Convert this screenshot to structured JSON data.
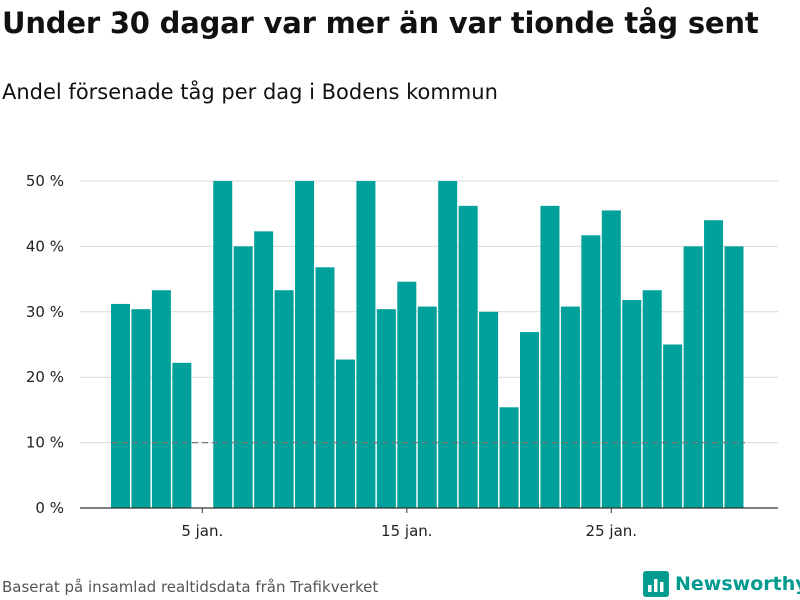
{
  "title": "Under 30 dagar var mer än var tionde tåg sent",
  "subtitle": "Andel försenade tåg per dag i Bodens kommun",
  "footer": "Baserat på insamlad realtidsdata från Trafikverket",
  "brand": {
    "name": "Newsworthy",
    "icon": "bar-chart-logo-icon",
    "color": "#009a8f"
  },
  "chart_data": {
    "type": "bar",
    "x": [
      1,
      2,
      3,
      4,
      5,
      6,
      7,
      8,
      9,
      10,
      11,
      12,
      13,
      14,
      15,
      16,
      17,
      18,
      19,
      20,
      21,
      22,
      23,
      24,
      25,
      26,
      27,
      28,
      29,
      30,
      31
    ],
    "values": [
      31.2,
      30.4,
      33.3,
      22.2,
      0,
      50,
      40,
      42.3,
      33.3,
      50,
      36.8,
      22.7,
      50,
      30.4,
      34.6,
      30.8,
      50,
      46.2,
      30,
      15.4,
      26.9,
      46.2,
      30.8,
      41.7,
      45.5,
      31.8,
      33.3,
      25,
      40,
      44,
      40
    ],
    "x_tick_labels": [
      {
        "x": 5,
        "label": "5 jan."
      },
      {
        "x": 15,
        "label": "15 jan."
      },
      {
        "x": 25,
        "label": "25 jan."
      }
    ],
    "y_ticks": [
      0,
      10,
      20,
      30,
      40,
      50
    ],
    "y_tick_labels": [
      "0 %",
      "10 %",
      "20 %",
      "30 %",
      "40 %",
      "50 %"
    ],
    "ylim": [
      0,
      50
    ],
    "reference_line": 10,
    "bar_color": "#00a19a",
    "reference_color": "#777777",
    "grid": true,
    "xlabel": "",
    "ylabel": ""
  }
}
